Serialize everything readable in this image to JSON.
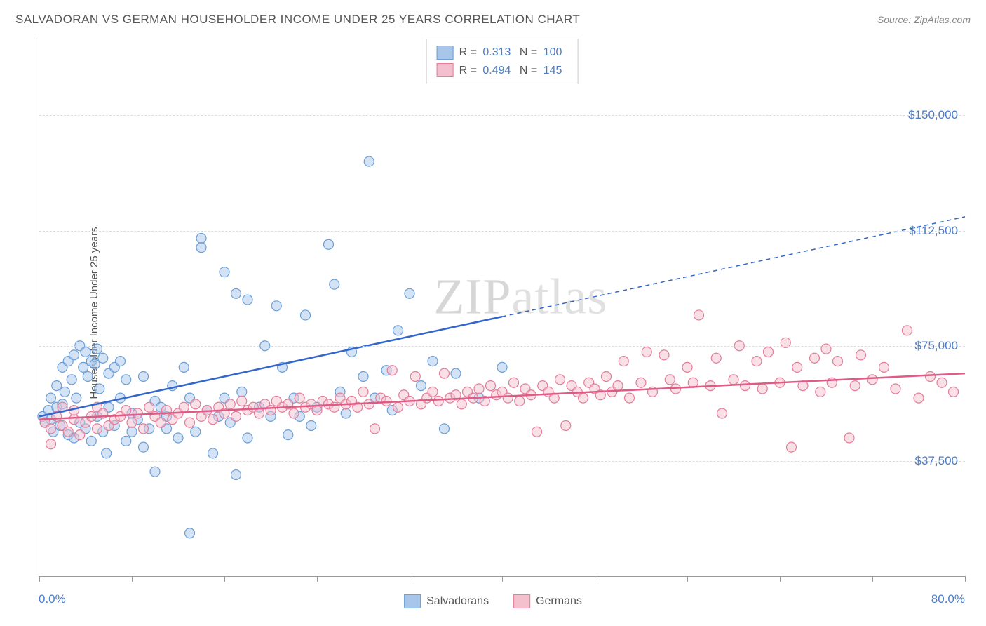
{
  "title": "SALVADORAN VS GERMAN HOUSEHOLDER INCOME UNDER 25 YEARS CORRELATION CHART",
  "source": "Source: ZipAtlas.com",
  "ylabel": "Householder Income Under 25 years",
  "watermark": "ZIPatlas",
  "chart": {
    "type": "scatter",
    "xlim": [
      0,
      80
    ],
    "ylim": [
      0,
      175000
    ],
    "x_start_label": "0.0%",
    "x_end_label": "80.0%",
    "y_ticks": [
      37500,
      75000,
      112500,
      150000
    ],
    "y_tick_labels": [
      "$37,500",
      "$75,000",
      "$112,500",
      "$150,000"
    ],
    "x_tick_positions": [
      0,
      8,
      16,
      24,
      32,
      40,
      48,
      56,
      64,
      72,
      80
    ],
    "background_color": "#ffffff",
    "grid_color": "#dddddd",
    "axis_color": "#999999",
    "marker_radius": 7,
    "marker_opacity": 0.5
  },
  "series": [
    {
      "name": "Salvadorans",
      "color_fill": "#a8c6ea",
      "color_stroke": "#6a9fd8",
      "R": "0.313",
      "N": "100",
      "trend": {
        "x1": 0,
        "y1": 52000,
        "x2": 80,
        "y2": 117000,
        "solid_until_x": 40
      },
      "points": [
        [
          0.3,
          52000
        ],
        [
          0.5,
          50000
        ],
        [
          0.8,
          54000
        ],
        [
          1.0,
          51000
        ],
        [
          1.0,
          58000
        ],
        [
          1.2,
          47000
        ],
        [
          1.5,
          55000
        ],
        [
          1.5,
          62000
        ],
        [
          1.8,
          49000
        ],
        [
          2.0,
          56000
        ],
        [
          2.0,
          68000
        ],
        [
          2.2,
          60000
        ],
        [
          2.5,
          46000
        ],
        [
          2.5,
          70000
        ],
        [
          2.8,
          64000
        ],
        [
          3.0,
          45000
        ],
        [
          3.0,
          72000
        ],
        [
          3.2,
          58000
        ],
        [
          3.5,
          75000
        ],
        [
          3.5,
          50000
        ],
        [
          3.8,
          68000
        ],
        [
          4.0,
          73000
        ],
        [
          4.0,
          48000
        ],
        [
          4.2,
          65000
        ],
        [
          4.5,
          70000
        ],
        [
          4.5,
          44000
        ],
        [
          4.8,
          69000
        ],
        [
          5.0,
          74000
        ],
        [
          5.0,
          52000
        ],
        [
          5.2,
          61000
        ],
        [
          5.5,
          47000
        ],
        [
          5.5,
          71000
        ],
        [
          5.8,
          40000
        ],
        [
          6.0,
          66000
        ],
        [
          6.0,
          55000
        ],
        [
          6.5,
          68000
        ],
        [
          6.5,
          49000
        ],
        [
          7.0,
          58000
        ],
        [
          7.0,
          70000
        ],
        [
          7.5,
          44000
        ],
        [
          7.5,
          64000
        ],
        [
          8.0,
          53000
        ],
        [
          8.0,
          47000
        ],
        [
          8.5,
          51000
        ],
        [
          9.0,
          65000
        ],
        [
          9.0,
          42000
        ],
        [
          9.5,
          48000
        ],
        [
          10.0,
          57000
        ],
        [
          10.0,
          34000
        ],
        [
          10.5,
          55000
        ],
        [
          11.0,
          52000
        ],
        [
          11.0,
          48000
        ],
        [
          11.5,
          62000
        ],
        [
          12.0,
          45000
        ],
        [
          12.5,
          68000
        ],
        [
          13.0,
          14000
        ],
        [
          13.0,
          58000
        ],
        [
          13.5,
          47000
        ],
        [
          14.0,
          110000
        ],
        [
          14.0,
          107000
        ],
        [
          14.5,
          54000
        ],
        [
          15.0,
          40000
        ],
        [
          15.5,
          52000
        ],
        [
          16.0,
          99000
        ],
        [
          16.0,
          58000
        ],
        [
          16.5,
          50000
        ],
        [
          17.0,
          92000
        ],
        [
          17.0,
          33000
        ],
        [
          17.5,
          60000
        ],
        [
          18.0,
          90000
        ],
        [
          18.0,
          45000
        ],
        [
          19.0,
          55000
        ],
        [
          19.5,
          75000
        ],
        [
          20.0,
          52000
        ],
        [
          20.5,
          88000
        ],
        [
          21.0,
          68000
        ],
        [
          21.5,
          46000
        ],
        [
          22.0,
          58000
        ],
        [
          22.5,
          52000
        ],
        [
          23.0,
          85000
        ],
        [
          23.5,
          49000
        ],
        [
          24.0,
          55000
        ],
        [
          25.0,
          108000
        ],
        [
          25.5,
          95000
        ],
        [
          26.0,
          60000
        ],
        [
          26.5,
          53000
        ],
        [
          27.0,
          73000
        ],
        [
          28.0,
          65000
        ],
        [
          28.5,
          135000
        ],
        [
          29.0,
          58000
        ],
        [
          30.0,
          67000
        ],
        [
          30.5,
          54000
        ],
        [
          31.0,
          80000
        ],
        [
          32.0,
          92000
        ],
        [
          33.0,
          62000
        ],
        [
          34.0,
          70000
        ],
        [
          35.0,
          48000
        ],
        [
          36.0,
          66000
        ],
        [
          38.0,
          58000
        ],
        [
          40.0,
          68000
        ]
      ]
    },
    {
      "name": "Germans",
      "color_fill": "#f4c0ce",
      "color_stroke": "#e47d9a",
      "R": "0.494",
      "N": "145",
      "trend": {
        "x1": 0,
        "y1": 51000,
        "x2": 80,
        "y2": 66000,
        "solid_until_x": 80
      },
      "points": [
        [
          0.5,
          50000
        ],
        [
          1.0,
          48000
        ],
        [
          1.0,
          43000
        ],
        [
          1.5,
          52000
        ],
        [
          2.0,
          49000
        ],
        [
          2.0,
          55000
        ],
        [
          2.5,
          47000
        ],
        [
          3.0,
          51000
        ],
        [
          3.0,
          54000
        ],
        [
          3.5,
          46000
        ],
        [
          4.0,
          50000
        ],
        [
          4.5,
          52000
        ],
        [
          5.0,
          48000
        ],
        [
          5.0,
          55000
        ],
        [
          5.5,
          53000
        ],
        [
          6.0,
          49000
        ],
        [
          6.5,
          51000
        ],
        [
          7.0,
          52000
        ],
        [
          7.5,
          54000
        ],
        [
          8.0,
          50000
        ],
        [
          8.5,
          53000
        ],
        [
          9.0,
          48000
        ],
        [
          9.5,
          55000
        ],
        [
          10.0,
          52000
        ],
        [
          10.5,
          50000
        ],
        [
          11.0,
          54000
        ],
        [
          11.5,
          51000
        ],
        [
          12.0,
          53000
        ],
        [
          12.5,
          55000
        ],
        [
          13.0,
          50000
        ],
        [
          13.5,
          56000
        ],
        [
          14.0,
          52000
        ],
        [
          14.5,
          54000
        ],
        [
          15.0,
          51000
        ],
        [
          15.5,
          55000
        ],
        [
          16.0,
          53000
        ],
        [
          16.5,
          56000
        ],
        [
          17.0,
          52000
        ],
        [
          17.5,
          57000
        ],
        [
          18.0,
          54000
        ],
        [
          18.5,
          55000
        ],
        [
          19.0,
          53000
        ],
        [
          19.5,
          56000
        ],
        [
          20.0,
          54000
        ],
        [
          20.5,
          57000
        ],
        [
          21.0,
          55000
        ],
        [
          21.5,
          56000
        ],
        [
          22.0,
          53000
        ],
        [
          22.5,
          58000
        ],
        [
          23.0,
          55000
        ],
        [
          23.5,
          56000
        ],
        [
          24.0,
          54000
        ],
        [
          24.5,
          57000
        ],
        [
          25.0,
          56000
        ],
        [
          25.5,
          55000
        ],
        [
          26.0,
          58000
        ],
        [
          26.5,
          56000
        ],
        [
          27.0,
          57000
        ],
        [
          27.5,
          55000
        ],
        [
          28.0,
          60000
        ],
        [
          28.5,
          56000
        ],
        [
          29.0,
          48000
        ],
        [
          29.5,
          58000
        ],
        [
          30.0,
          57000
        ],
        [
          30.5,
          67000
        ],
        [
          31.0,
          55000
        ],
        [
          31.5,
          59000
        ],
        [
          32.0,
          57000
        ],
        [
          32.5,
          65000
        ],
        [
          33.0,
          56000
        ],
        [
          33.5,
          58000
        ],
        [
          34.0,
          60000
        ],
        [
          34.5,
          57000
        ],
        [
          35.0,
          66000
        ],
        [
          35.5,
          58000
        ],
        [
          36.0,
          59000
        ],
        [
          36.5,
          56000
        ],
        [
          37.0,
          60000
        ],
        [
          37.5,
          58000
        ],
        [
          38.0,
          61000
        ],
        [
          38.5,
          57000
        ],
        [
          39.0,
          62000
        ],
        [
          39.5,
          59000
        ],
        [
          40.0,
          60000
        ],
        [
          40.5,
          58000
        ],
        [
          41.0,
          63000
        ],
        [
          41.5,
          57000
        ],
        [
          42.0,
          61000
        ],
        [
          42.5,
          59000
        ],
        [
          43.0,
          47000
        ],
        [
          43.5,
          62000
        ],
        [
          44.0,
          60000
        ],
        [
          44.5,
          58000
        ],
        [
          45.0,
          64000
        ],
        [
          45.5,
          49000
        ],
        [
          46.0,
          62000
        ],
        [
          46.5,
          60000
        ],
        [
          47.0,
          58000
        ],
        [
          47.5,
          63000
        ],
        [
          48.0,
          61000
        ],
        [
          48.5,
          59000
        ],
        [
          49.0,
          65000
        ],
        [
          49.5,
          60000
        ],
        [
          50.0,
          62000
        ],
        [
          50.5,
          70000
        ],
        [
          51.0,
          58000
        ],
        [
          52.0,
          63000
        ],
        [
          52.5,
          73000
        ],
        [
          53.0,
          60000
        ],
        [
          54.0,
          72000
        ],
        [
          54.5,
          64000
        ],
        [
          55.0,
          61000
        ],
        [
          56.0,
          68000
        ],
        [
          56.5,
          63000
        ],
        [
          57.0,
          85000
        ],
        [
          58.0,
          62000
        ],
        [
          58.5,
          71000
        ],
        [
          59.0,
          53000
        ],
        [
          60.0,
          64000
        ],
        [
          60.5,
          75000
        ],
        [
          61.0,
          62000
        ],
        [
          62.0,
          70000
        ],
        [
          62.5,
          61000
        ],
        [
          63.0,
          73000
        ],
        [
          64.0,
          63000
        ],
        [
          64.5,
          76000
        ],
        [
          65.0,
          42000
        ],
        [
          65.5,
          68000
        ],
        [
          66.0,
          62000
        ],
        [
          67.0,
          71000
        ],
        [
          67.5,
          60000
        ],
        [
          68.0,
          74000
        ],
        [
          68.5,
          63000
        ],
        [
          69.0,
          70000
        ],
        [
          70.0,
          45000
        ],
        [
          70.5,
          62000
        ],
        [
          71.0,
          72000
        ],
        [
          72.0,
          64000
        ],
        [
          73.0,
          68000
        ],
        [
          74.0,
          61000
        ],
        [
          75.0,
          80000
        ],
        [
          76.0,
          58000
        ],
        [
          77.0,
          65000
        ],
        [
          78.0,
          63000
        ],
        [
          79.0,
          60000
        ]
      ]
    }
  ],
  "legend_series_labels": [
    "Salvadorans",
    "Germans"
  ]
}
